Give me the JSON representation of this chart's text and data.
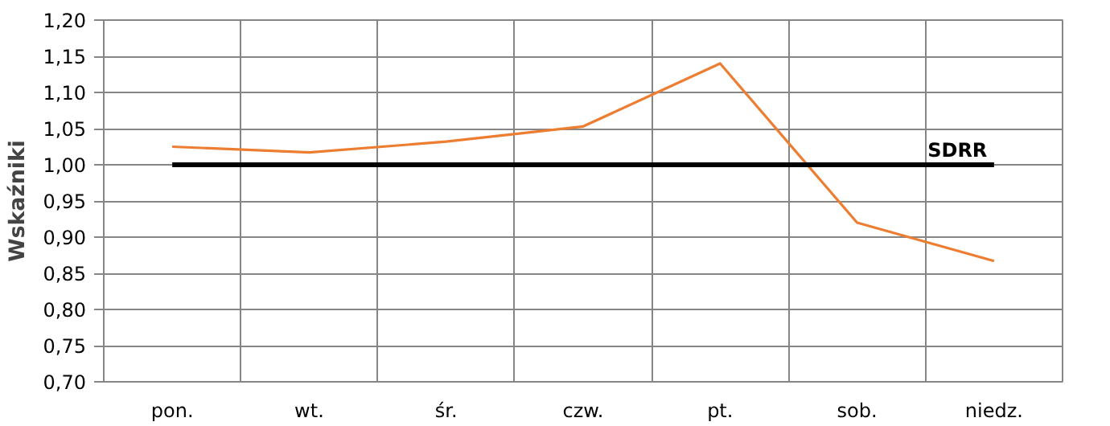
{
  "chart_data": {
    "type": "line",
    "ylabel": "Wskaźniki",
    "categories": [
      "pon.",
      "wt.",
      "śr.",
      "czw.",
      "pt.",
      "sob.",
      "niedz."
    ],
    "series": [
      {
        "name": null,
        "color": "#ed7d31",
        "values": [
          1.025,
          1.017,
          1.032,
          1.053,
          1.14,
          0.92,
          0.867
        ]
      },
      {
        "name": "SDRR",
        "color": "#000000",
        "values": [
          1.0,
          1.0,
          1.0,
          1.0,
          1.0,
          1.0,
          1.0
        ]
      }
    ],
    "ylim": [
      0.7,
      1.2
    ],
    "yticks": [
      {
        "value": 0.7,
        "label": "0,70"
      },
      {
        "value": 0.75,
        "label": "0,75"
      },
      {
        "value": 0.8,
        "label": "0,80"
      },
      {
        "value": 0.85,
        "label": "0,85"
      },
      {
        "value": 0.9,
        "label": "0,90"
      },
      {
        "value": 0.95,
        "label": "0,95"
      },
      {
        "value": 1.0,
        "label": "1,00"
      },
      {
        "value": 1.05,
        "label": "1,05"
      },
      {
        "value": 1.1,
        "label": "1,10"
      },
      {
        "value": 1.15,
        "label": "1,15"
      },
      {
        "value": 1.2,
        "label": "1,20"
      }
    ],
    "grid": true,
    "legend": false
  }
}
